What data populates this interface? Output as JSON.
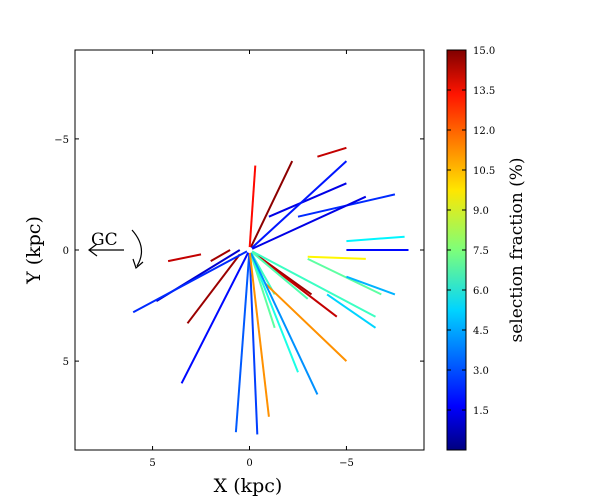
{
  "chart_data": {
    "type": "line",
    "title": "",
    "xlabel": "X (kpc)",
    "ylabel": "Y (kpc)",
    "xlim": [
      9,
      -9
    ],
    "ylim": [
      9,
      -9
    ],
    "x_ticks": [
      5,
      0,
      -5
    ],
    "y_ticks": [
      -5,
      0,
      5
    ],
    "x_tick_labels": [
      "5",
      "0",
      "−5"
    ],
    "y_tick_labels": [
      "−5",
      "0",
      "5"
    ],
    "grid": false,
    "annotation": {
      "text": "GC",
      "meaning": "direction to Galactic Centre (arrow and rotation sense)"
    },
    "colorbar": {
      "label": "selection fraction (%)",
      "range": [
        0.0,
        15.0
      ],
      "colormap": "jet",
      "ticks": [
        1.5,
        3.0,
        4.5,
        6.0,
        7.5,
        9.0,
        10.5,
        12.0,
        13.5,
        15.0
      ],
      "tick_labels": [
        "1.5",
        "3.0",
        "4.5",
        "6.0",
        "7.5",
        "9.0",
        "10.5",
        "12.0",
        "13.5",
        "15.0"
      ]
    },
    "series": [
      {
        "x": [
          -5.0,
          -8.2
        ],
        "y": [
          0.0,
          0.0
        ],
        "value": 2.0
      },
      {
        "x": [
          -5.0,
          -8.0
        ],
        "y": [
          -0.4,
          -0.6
        ],
        "value": 5.5
      },
      {
        "x": [
          -3.0,
          -6.0
        ],
        "y": [
          0.3,
          0.4
        ],
        "value": 9.5
      },
      {
        "x": [
          -2.5,
          -7.5
        ],
        "y": [
          -1.5,
          -2.5
        ],
        "value": 2.5
      },
      {
        "x": [
          -1.0,
          -5.0
        ],
        "y": [
          -1.5,
          -3.0
        ],
        "value": 1.5
      },
      {
        "x": [
          -3.0,
          -6.8
        ],
        "y": [
          0.4,
          2.0
        ],
        "value": 7.0
      },
      {
        "x": [
          -5.0,
          -7.5
        ],
        "y": [
          1.2,
          2.0
        ],
        "value": 4.5
      },
      {
        "x": [
          -4.0,
          -6.5
        ],
        "y": [
          2.0,
          3.5
        ],
        "value": 5.0
      },
      {
        "x": [
          0.0,
          -1.3
        ],
        "y": [
          0.0,
          2.0
        ],
        "value": 6.5
      },
      {
        "x": [
          -0.8,
          -5.0
        ],
        "y": [
          1.5,
          5.0
        ],
        "value": 11.0
      },
      {
        "x": [
          0.0,
          -3.2
        ],
        "y": [
          0.0,
          2.0
        ],
        "value": 14.5
      },
      {
        "x": [
          0.0,
          -2.2
        ],
        "y": [
          0.0,
          -4.0
        ],
        "value": 14.8
      },
      {
        "x": [
          0.0,
          -0.3
        ],
        "y": [
          0.0,
          -3.8
        ],
        "value": 13.0
      },
      {
        "x": [
          1.0,
          2.0
        ],
        "y": [
          0.0,
          0.5
        ],
        "value": 14.5
      },
      {
        "x": [
          2.5,
          4.2
        ],
        "y": [
          0.2,
          0.5
        ],
        "value": 14.0
      },
      {
        "x": [
          0.5,
          4.8
        ],
        "y": [
          0.0,
          2.3
        ],
        "value": 1.2
      },
      {
        "x": [
          0.5,
          3.2
        ],
        "y": [
          0.2,
          3.3
        ],
        "value": 14.6
      },
      {
        "x": [
          0.0,
          0.7
        ],
        "y": [
          0.0,
          8.2
        ],
        "value": 3.2
      },
      {
        "x": [
          0.0,
          -0.4
        ],
        "y": [
          0.0,
          8.3
        ],
        "value": 2.8
      },
      {
        "x": [
          0.0,
          -1.3
        ],
        "y": [
          0.0,
          3.5
        ],
        "value": 7.0
      },
      {
        "x": [
          0.0,
          -2.5
        ],
        "y": [
          0.0,
          5.5
        ],
        "value": 6.0
      },
      {
        "x": [
          0.0,
          -3.5
        ],
        "y": [
          0.0,
          6.5
        ],
        "value": 4.0
      },
      {
        "x": [
          0.0,
          3.5
        ],
        "y": [
          0.0,
          6.0
        ],
        "value": 2.0
      },
      {
        "x": [
          0.0,
          6.0
        ],
        "y": [
          0.0,
          2.8
        ],
        "value": 2.5
      },
      {
        "x": [
          0.0,
          -4.5
        ],
        "y": [
          0.0,
          3.0
        ],
        "value": 14.0
      },
      {
        "x": [
          0.0,
          -5.0
        ],
        "y": [
          0.0,
          -4.0
        ],
        "value": 2.2
      },
      {
        "x": [
          -3.5,
          -5.0
        ],
        "y": [
          -4.2,
          -4.6
        ],
        "value": 14.0
      },
      {
        "x": [
          0.0,
          -6.0
        ],
        "y": [
          0.0,
          -2.4
        ],
        "value": 1.5
      },
      {
        "x": [
          0.0,
          -6.5
        ],
        "y": [
          0.0,
          3.0
        ],
        "value": 6.5
      },
      {
        "x": [
          0.0,
          -3.0
        ],
        "y": [
          0.0,
          2.2
        ],
        "value": 6.8
      },
      {
        "x": [
          0.0,
          -1.0
        ],
        "y": [
          0.0,
          7.5
        ],
        "value": 11.0
      }
    ]
  }
}
